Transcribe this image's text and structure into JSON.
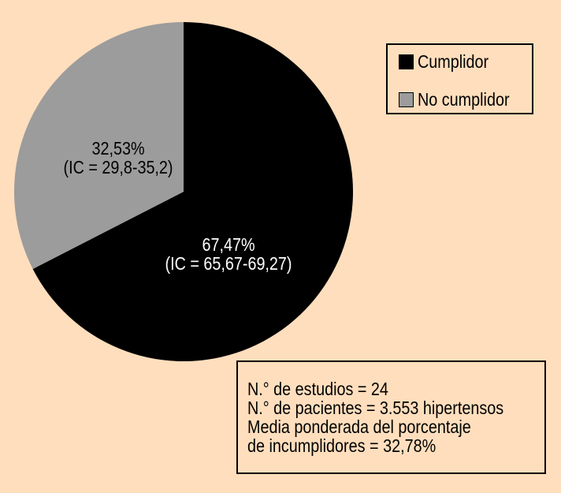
{
  "chart_data": {
    "type": "pie",
    "title": "",
    "slices": [
      {
        "name": "Cumplidor",
        "value": 67.47,
        "label": "67,47%",
        "ci": "(IC = 65,67-69,27)",
        "color": "#000000",
        "label_color": "#FFFFFF"
      },
      {
        "name": "No cumplidor",
        "value": 32.53,
        "label": "32,53%",
        "ci": "(IC = 29,8-35,2)",
        "color": "#9C9C9C",
        "label_color": "#000000"
      }
    ],
    "start": "12 o'clock",
    "direction": "clockwise",
    "legend_placement": "top-right"
  },
  "legend": {
    "items": [
      "Cumplidor",
      "No cumplidor"
    ]
  },
  "info_box": {
    "lines": [
      "N.° de estudios = 24",
      "N.° de pacientes = 3.553 hipertensos",
      "Media ponderada del porcentaje",
      "de incumplidores = 32,78%"
    ]
  },
  "colors": {
    "background": "#FFDEBD"
  }
}
